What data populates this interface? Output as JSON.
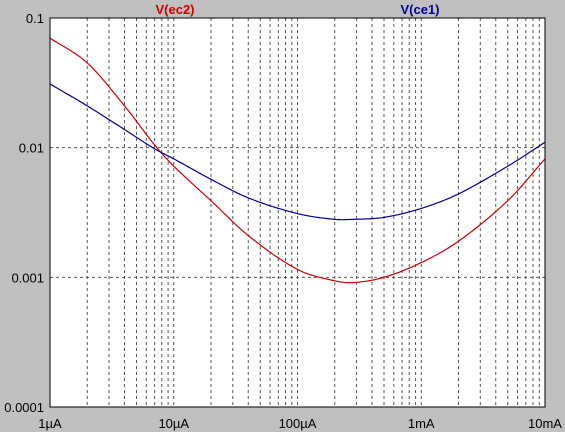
{
  "chart_data": {
    "type": "line",
    "x_scale": "log",
    "y_scale": "log",
    "xlim": [
      1e-06,
      0.01
    ],
    "ylim": [
      0.0001,
      0.1
    ],
    "x_ticks": [
      {
        "value": 1e-06,
        "label": "1µA"
      },
      {
        "value": 1e-05,
        "label": "10µA"
      },
      {
        "value": 0.0001,
        "label": "100µA"
      },
      {
        "value": 0.001,
        "label": "1mA"
      },
      {
        "value": 0.01,
        "label": "10mA"
      }
    ],
    "y_ticks": [
      {
        "value": 0.1,
        "label": "0.1"
      },
      {
        "value": 0.01,
        "label": "0.01"
      },
      {
        "value": 0.001,
        "label": "0.001"
      },
      {
        "value": 0.0001,
        "label": "0.0001"
      }
    ],
    "grid": true,
    "series": [
      {
        "name": "V(ec2)",
        "color": "#cc0000",
        "x": [
          1e-06,
          2e-06,
          4e-06,
          7e-06,
          1e-05,
          2e-05,
          4e-05,
          0.0001,
          0.0002,
          0.00028,
          0.0005,
          0.001,
          0.002,
          0.005,
          0.01
        ],
        "y": [
          0.07,
          0.045,
          0.021,
          0.0105,
          0.0072,
          0.0039,
          0.0021,
          0.00115,
          0.00094,
          0.00091,
          0.001,
          0.0013,
          0.0019,
          0.0039,
          0.0082
        ]
      },
      {
        "name": "V(ce1)",
        "color": "#000099",
        "x": [
          1e-06,
          2e-06,
          4e-06,
          7e-06,
          1e-05,
          2e-05,
          4e-05,
          0.0001,
          0.0002,
          0.00028,
          0.0005,
          0.001,
          0.002,
          0.005,
          0.01
        ],
        "y": [
          0.031,
          0.021,
          0.0138,
          0.0098,
          0.0082,
          0.0057,
          0.0041,
          0.0031,
          0.0028,
          0.0028,
          0.0029,
          0.0034,
          0.0044,
          0.0072,
          0.011
        ]
      }
    ]
  },
  "colors": {
    "background": "#c0c0c0",
    "plot_area": "#ffffff",
    "grid": "#555555",
    "axis": "#000000"
  }
}
